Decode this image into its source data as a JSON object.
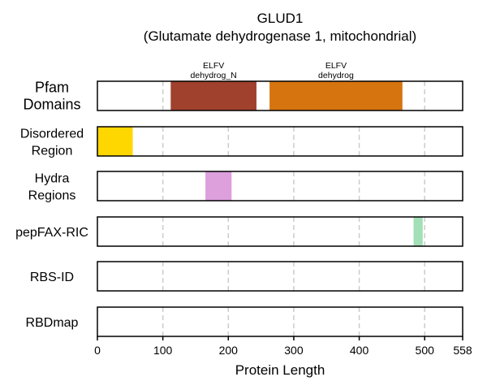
{
  "title": "GLUD1",
  "subtitle": "(Glutamate dehydrogenase 1, mitochondrial)",
  "chart_data": {
    "type": "bar",
    "title": "GLUD1",
    "subtitle": "(Glutamate dehydrogenase 1, mitochondrial)",
    "xlabel": "Protein Length",
    "xlim": [
      0,
      558
    ],
    "xticks": [
      0,
      100,
      200,
      300,
      400,
      500,
      558
    ],
    "grid": "vertical dashed",
    "tracks": [
      {
        "label": [
          "Pfam",
          "Domains"
        ],
        "segments": [
          {
            "start": 112,
            "end": 243,
            "color": "#A0412D",
            "label": [
              "ELFV",
              "dehydrog_N"
            ]
          },
          {
            "start": 263,
            "end": 466,
            "color": "#D6740F",
            "label": [
              "ELFV",
              "dehydrog"
            ]
          }
        ]
      },
      {
        "label": [
          "Disordered",
          "Region"
        ],
        "segments": [
          {
            "start": 0,
            "end": 54,
            "color": "#FFD700"
          }
        ]
      },
      {
        "label": [
          "Hydra",
          "Regions"
        ],
        "segments": [
          {
            "start": 165,
            "end": 205,
            "color": "#DDA0DD"
          }
        ]
      },
      {
        "label": [
          "pepFAX-RIC"
        ],
        "segments": [
          {
            "start": 483,
            "end": 497,
            "color": "#A3DFB7"
          }
        ]
      },
      {
        "label": [
          "RBS-ID"
        ],
        "segments": []
      },
      {
        "label": [
          "RBDmap"
        ],
        "segments": []
      }
    ]
  }
}
